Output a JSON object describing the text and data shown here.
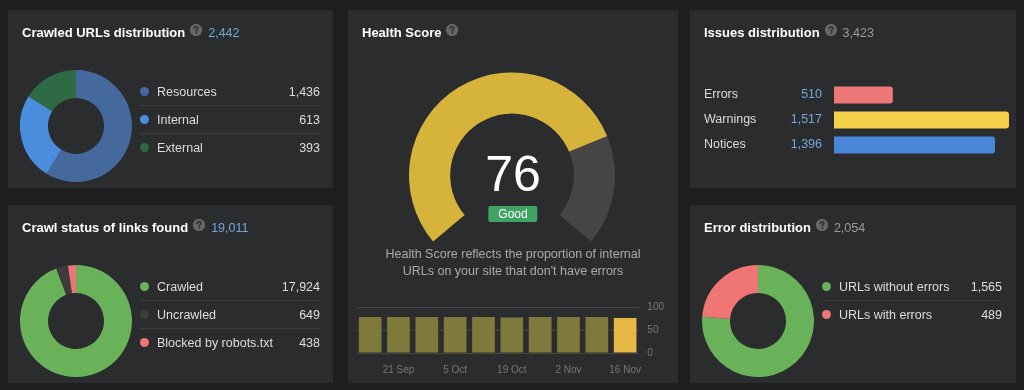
{
  "chart_data": [
    {
      "type": "donut",
      "title": "Crawled URLs distribution",
      "subtitle": "2,442",
      "categories": [
        "Resources",
        "Internal",
        "External"
      ],
      "values": [
        1436,
        613,
        393
      ],
      "colors": [
        "#45699c",
        "#4a8ddc",
        "#2e6b45"
      ],
      "value_labels": [
        "1,436",
        "613",
        "393"
      ],
      "legend": "right"
    },
    {
      "type": "donut",
      "title": "Health Score",
      "categories": [
        null,
        null
      ],
      "values": [
        76,
        24
      ],
      "colors": [
        "#d6b43c",
        "#454545"
      ],
      "value_labels": [
        "76",
        null
      ],
      "annotations": [
        "Good",
        "Health Score reflects the proportion of internal URLs on your site that don't have errors"
      ]
    },
    {
      "type": "bar",
      "categories": [
        null,
        "21 Sep",
        null,
        "5 Oct",
        null,
        "19 Oct",
        null,
        "2 Nov",
        null,
        "16 Nov"
      ],
      "values": [
        78,
        78,
        78,
        78,
        78,
        77,
        78,
        78,
        78,
        76
      ],
      "colors": [
        "#7f7a3c",
        "#7f7a3c",
        "#7f7a3c",
        "#7f7a3c",
        "#7f7a3c",
        "#7f7a3c",
        "#7f7a3c",
        "#7f7a3c",
        "#7f7a3c",
        "#e6b845"
      ],
      "ylim": [
        0,
        100
      ],
      "yticks": [
        0,
        50,
        100
      ],
      "grid": "y"
    },
    {
      "type": "bar",
      "orientation": "horizontal",
      "title": "Issues distribution",
      "subtitle": "3,423",
      "categories": [
        "Errors",
        "Warnings",
        "Notices"
      ],
      "values": [
        510,
        1517,
        1396
      ],
      "colors": [
        "#ee7777",
        "#f5d04a",
        "#4a86d8"
      ],
      "value_labels": [
        "510",
        "1,517",
        "1,396"
      ]
    },
    {
      "type": "donut",
      "title": "Crawl status of links found",
      "subtitle": "19,011",
      "categories": [
        "Crawled",
        "Uncrawled",
        "Blocked by robots.txt"
      ],
      "values": [
        17924,
        649,
        438
      ],
      "colors": [
        "#6ab25a",
        "#3c3c3c",
        "#f07575"
      ],
      "value_labels": [
        "17,924",
        "649",
        "438"
      ],
      "legend": "right"
    },
    {
      "type": "donut",
      "title": "Error distribution",
      "subtitle": "2,054",
      "categories": [
        "URLs without errors",
        "URLs with errors"
      ],
      "values": [
        1565,
        489
      ],
      "colors": [
        "#6ab25a",
        "#f07575"
      ],
      "value_labels": [
        "1,565",
        "489"
      ],
      "legend": "right"
    }
  ]
}
